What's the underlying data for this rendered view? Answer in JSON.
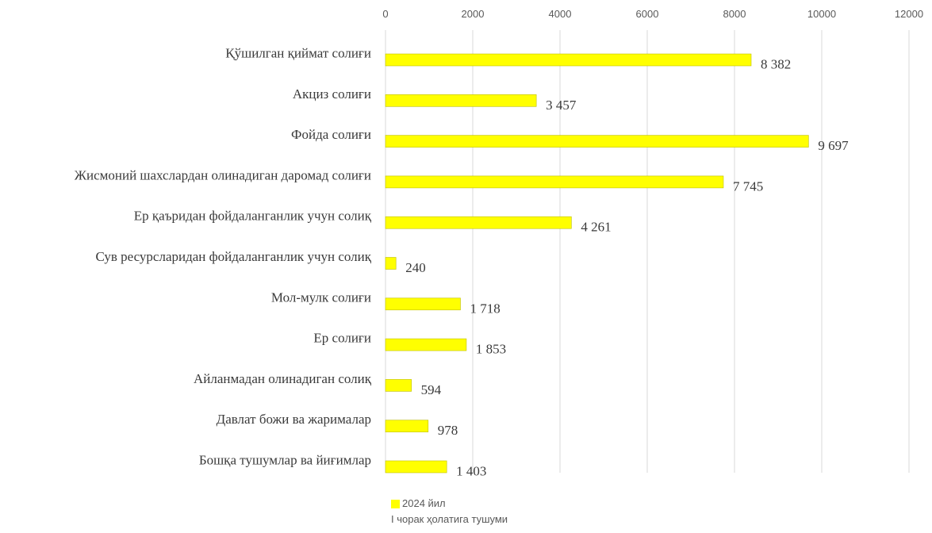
{
  "chart_data": {
    "type": "bar",
    "orientation": "horizontal",
    "categories": [
      "Қўшилган қиймат солиғи",
      "Акциз солиғи",
      "Фойда солиғи",
      "Жисмоний шахслардан олинадиган даромад солиғи",
      "Ер қаъридан фойдаланганлик учун солиқ",
      "Сув ресурсларидан фойдаланганлик учун солиқ",
      "Мол-мулк солиғи",
      "Ер солиғи",
      "Айланмадан олинадиган солиқ",
      "Давлат божи ва жарималар",
      "Бошқа тушумлар ва йиғимлар"
    ],
    "series": [
      {
        "name": "2024 йил I чорак ҳолатига тушуми",
        "values": [
          8382,
          3457,
          9697,
          7745,
          4261,
          240,
          1718,
          1853,
          594,
          978,
          1403
        ],
        "data_labels": [
          "8 382",
          "3 457",
          "9 697",
          "7 745",
          "4 261",
          "240",
          "1 718",
          "1 853",
          "594",
          "978",
          "1 403"
        ]
      }
    ],
    "xlim": [
      0,
      12000
    ],
    "x_ticks": [
      "0",
      "2000",
      "4000",
      "6000",
      "8000",
      "10000",
      "12000"
    ],
    "axis_position": "top",
    "grid": true,
    "legend_position": "bottom",
    "colors": {
      "bar": "#ffff00",
      "bar_edge": "#bfbf00",
      "grid": "#d9d9d9"
    },
    "title": "",
    "xlabel": "",
    "ylabel": ""
  },
  "legend": {
    "line1": "2024 йил",
    "line2": "I чорак ҳолатига тушуми",
    "swatch_color": "#ffff00"
  }
}
